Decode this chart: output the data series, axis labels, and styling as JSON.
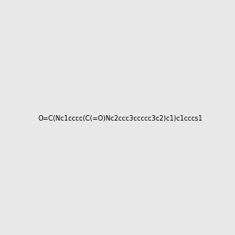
{
  "smiles": "O=C(Nc1cccc(C(=O)Nc2ccc3ccccc3c2)c1)c1cccs1",
  "image_size": 300,
  "background_color": "#e8e8e8",
  "bond_color": "#000000",
  "atom_colors": {
    "S": "#cccc00",
    "N": "#4444ff",
    "O": "#ff0000",
    "C": "#000000"
  }
}
